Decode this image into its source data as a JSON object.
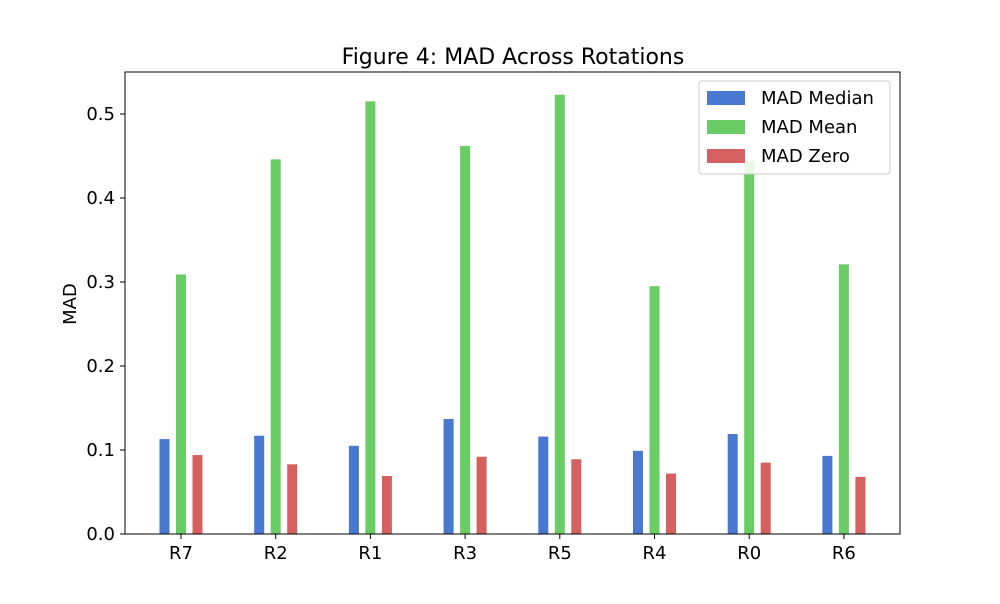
{
  "chart_data": {
    "type": "bar",
    "title": "Figure 4: MAD Across Rotations",
    "xlabel": "",
    "ylabel": "MAD",
    "ylim": [
      0,
      0.55
    ],
    "yticks": [
      "0.0",
      "0.1",
      "0.2",
      "0.3",
      "0.4",
      "0.5"
    ],
    "grid": false,
    "legend_position": "top-right",
    "categories": [
      "R7",
      "R2",
      "R1",
      "R3",
      "R5",
      "R4",
      "R0",
      "R6"
    ],
    "series": [
      {
        "name": "MAD Median",
        "color": "#4878d0",
        "values": [
          0.113,
          0.117,
          0.105,
          0.137,
          0.116,
          0.099,
          0.119,
          0.093
        ]
      },
      {
        "name": "MAD Mean",
        "color": "#6acc64",
        "values": [
          0.309,
          0.446,
          0.515,
          0.462,
          0.523,
          0.295,
          0.444,
          0.321
        ]
      },
      {
        "name": "MAD Zero",
        "color": "#d65f5f",
        "values": [
          0.094,
          0.083,
          0.069,
          0.092,
          0.089,
          0.072,
          0.085,
          0.068
        ]
      }
    ]
  }
}
